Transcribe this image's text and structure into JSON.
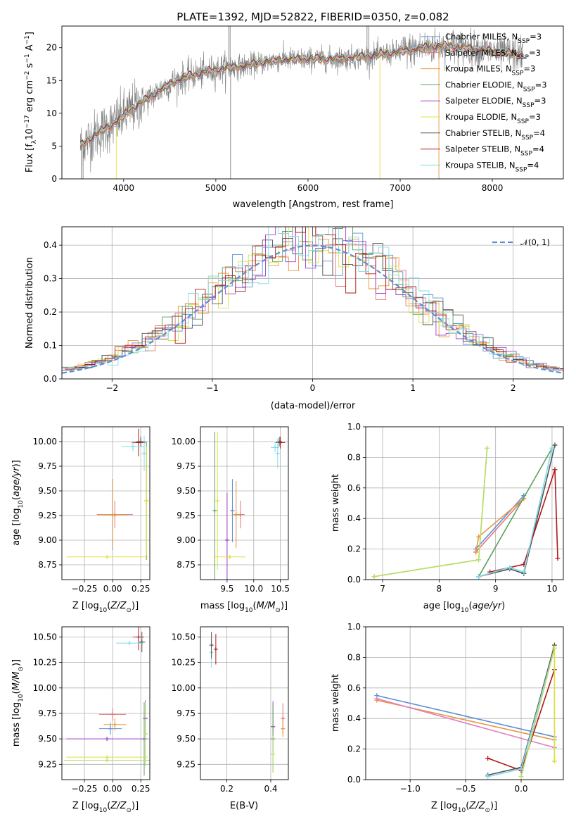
{
  "figure_title": "PLATE=1392, MJD=52822, FIBERID=0350, z=0.082",
  "colors": {
    "Chabrier MILES": "#5b8fd6",
    "Salpeter MILES": "#e37777",
    "Kroupa MILES": "#e8953a",
    "Chabrier ELODIE": "#5aa05a",
    "Salpeter ELODIE": "#a040c8",
    "Kroupa ELODIE": "#e0e040",
    "Chabrier STELIB": "#555555",
    "Salpeter STELIB": "#b01818",
    "Kroupa STELIB": "#7fdcec",
    "data": "#808080",
    "normal": "#5b8fd6",
    "pink": "#e080c0",
    "lime": "#b8dc70"
  },
  "legend": {
    "models": [
      {
        "name": "Chabrier MILES",
        "n": "3"
      },
      {
        "name": "Salpeter MILES",
        "n": "3"
      },
      {
        "name": "Kroupa MILES",
        "n": "3"
      },
      {
        "name": "Chabrier ELODIE",
        "n": "3"
      },
      {
        "name": "Salpeter ELODIE",
        "n": "3"
      },
      {
        "name": "Kroupa ELODIE",
        "n": "3"
      },
      {
        "name": "Chabrier STELIB",
        "n": "4"
      },
      {
        "name": "Salpeter STELIB",
        "n": "4"
      },
      {
        "name": "Kroupa STELIB",
        "n": "4"
      }
    ],
    "n_prefix": "N",
    "n_sub": "SSP",
    "normal_label": "𝒩(0, 1)"
  },
  "chart_data": [
    {
      "id": "spectrum",
      "type": "line",
      "title": "PLATE=1392, MJD=52822, FIBERID=0350, z=0.082",
      "xlabel": "wavelength [Angstrom, rest frame]",
      "ylabel_main": "Flux [f",
      "ylabel_sub": "λ",
      "ylabel_rest": "10",
      "ylabel_exp1": "−17",
      "ylabel_mid": " erg cm",
      "ylabel_exp2": "−2",
      "ylabel_mid2": " s",
      "ylabel_exp3": "−1",
      "ylabel_mid3": " A",
      "ylabel_exp4": "−1",
      "ylabel_end": "]",
      "xlim": [
        3330,
        8770
      ],
      "ylim": [
        0,
        23.3
      ],
      "xticks": [
        4000,
        5000,
        6000,
        7000,
        8000
      ],
      "yticks": [
        0,
        5,
        10,
        15,
        20
      ],
      "grid": false,
      "legend_position": "right",
      "spectrum_shape": {
        "x": [
          3530,
          3700,
          3900,
          4100,
          4300,
          4500,
          4700,
          4900,
          5100,
          5300,
          5500,
          5700,
          5900,
          6100,
          6300,
          6500,
          6700,
          6900,
          7100,
          7300,
          7500,
          7700,
          7900,
          8100,
          8300
        ],
        "y": [
          5.0,
          6.8,
          8.5,
          10.8,
          12.6,
          14.5,
          15.7,
          16.3,
          16.9,
          17.2,
          17.7,
          18.2,
          18.2,
          18.3,
          18.3,
          18.5,
          18.8,
          19.2,
          19.6,
          20.1,
          20.3,
          20.0,
          19.6,
          19.2,
          19.0
        ]
      }
    },
    {
      "id": "residuals",
      "type": "histogram",
      "xlabel": "(data-model)/error",
      "ylabel": "Normed distribution",
      "xlim": [
        -2.5,
        2.5
      ],
      "ylim": [
        0,
        0.455
      ],
      "xticks": [
        -2,
        -1,
        0,
        1,
        2
      ],
      "yticks": [
        0.0,
        0.1,
        0.2,
        0.3,
        0.4
      ],
      "grid": true,
      "bin_width": 0.1,
      "legend_position": "top-right",
      "normal_curve": {
        "mean": 0,
        "sigma": 1,
        "style": "dashed"
      }
    },
    {
      "id": "age_vs_Z",
      "type": "errorbar",
      "xlabel": "Z [log",
      "xlabel_sub": "10",
      "xlabel_rest": "(Z/Z",
      "xlabel_sun": "⊙",
      "xlabel_end": ")]",
      "ylabel": "age  [log",
      "ylabel_sub": "10",
      "ylabel_rest": "(age/yr)]",
      "xlim": [
        -0.45,
        0.33
      ],
      "ylim": [
        8.6,
        10.15
      ],
      "xticks": [
        -0.25,
        0.0,
        0.25
      ],
      "xticklabels": [
        "−0.25",
        "0.00",
        "0.25"
      ],
      "yticks": [
        8.75,
        9.0,
        9.25,
        9.5,
        9.75,
        10.0
      ],
      "grid": true,
      "points": [
        {
          "model": "Chabrier MILES",
          "x": 0.0,
          "y": 9.26,
          "xerr": 0.13,
          "yerr": 0.36
        },
        {
          "model": "Salpeter MILES",
          "x": 0.02,
          "y": 9.26,
          "xerr": 0.16,
          "yerr": 0.14
        },
        {
          "model": "Kroupa MILES",
          "x": 0.0,
          "y": 9.26,
          "xerr": 0.12,
          "yerr": 0.34
        },
        {
          "model": "Chabrier ELODIE",
          "x": 0.3,
          "y": 9.4,
          "xerr": 0.02,
          "yerr": 0.6
        },
        {
          "model": "Kroupa ELODIE",
          "x": -0.05,
          "y": 8.83,
          "xerr": 0.36,
          "yerr": 0.02
        },
        {
          "model": "Kroupa ELODIE",
          "x": 0.3,
          "y": 9.4,
          "xerr": 0.02,
          "yerr": 0.55
        },
        {
          "model": "Salpeter STELIB",
          "x": 0.23,
          "y": 9.99,
          "xerr": 0.06,
          "yerr": 0.14
        },
        {
          "model": "Chabrier STELIB",
          "x": 0.25,
          "y": 10.0,
          "xerr": 0.04,
          "yerr": 0.05
        },
        {
          "model": "Kroupa STELIB",
          "x": 0.18,
          "y": 9.95,
          "xerr": 0.1,
          "yerr": 0.05
        },
        {
          "model": "Kroupa STELIB",
          "x": 0.28,
          "y": 9.88,
          "xerr": 0.02,
          "yerr": 0.18
        }
      ]
    },
    {
      "id": "age_vs_mass",
      "type": "errorbar",
      "xlabel": "mass [log",
      "xlabel_sub": "10",
      "xlabel_rest": "(M/M",
      "xlabel_sun": "⊙",
      "xlabel_end": ")]",
      "xlim": [
        9.0,
        10.65
      ],
      "ylim": [
        8.6,
        10.15
      ],
      "xticks": [
        9.5,
        10.0,
        10.5
      ],
      "xticklabels": [
        "9.5",
        "10.0",
        "10.5"
      ],
      "yticks": [
        8.75,
        9.0,
        9.25,
        9.5,
        9.75,
        10.0
      ],
      "grid": true,
      "points": [
        {
          "model": "Chabrier MILES",
          "x": 9.6,
          "y": 9.3,
          "xerr": 0.03,
          "yerr": 0.32
        },
        {
          "model": "Salpeter MILES",
          "x": 9.75,
          "y": 9.26,
          "xerr": 0.08,
          "yerr": 0.14
        },
        {
          "model": "Kroupa MILES",
          "x": 9.67,
          "y": 9.26,
          "xerr": 0.08,
          "yerr": 0.34
        },
        {
          "model": "Chabrier ELODIE",
          "x": 9.27,
          "y": 9.3,
          "xerr": 0.02,
          "yerr": 0.8
        },
        {
          "model": "Salpeter ELODIE",
          "x": 9.5,
          "y": 9.0,
          "xerr": 0.02,
          "yerr": 0.48
        },
        {
          "model": "Kroupa ELODIE",
          "x": 9.55,
          "y": 8.83,
          "xerr": 0.3,
          "yerr": 0.02
        },
        {
          "model": "Kroupa ELODIE",
          "x": 9.32,
          "y": 9.4,
          "xerr": 0.02,
          "yerr": 0.7
        },
        {
          "model": "Salpeter STELIB",
          "x": 10.5,
          "y": 9.99,
          "xerr": 0.09,
          "yerr": 0.06
        },
        {
          "model": "Chabrier STELIB",
          "x": 10.48,
          "y": 10.0,
          "xerr": 0.05,
          "yerr": 0.05
        },
        {
          "model": "Kroupa STELIB",
          "x": 10.4,
          "y": 9.94,
          "xerr": 0.08,
          "yerr": 0.05
        },
        {
          "model": "Kroupa STELIB",
          "x": 10.45,
          "y": 9.88,
          "xerr": 0.02,
          "yerr": 0.15
        }
      ]
    },
    {
      "id": "weight_vs_age",
      "type": "line",
      "xlabel": "age  [log",
      "xlabel_sub": "10",
      "xlabel_rest": "(age/yr)]",
      "ylabel": "mass weight",
      "xlim": [
        6.7,
        10.2
      ],
      "ylim": [
        0,
        1.0
      ],
      "xticks": [
        7,
        8,
        9,
        10
      ],
      "yticks": [
        0.0,
        0.2,
        0.4,
        0.6,
        0.8,
        1.0
      ],
      "grid": true,
      "series": [
        {
          "model": "Chabrier MILES",
          "x": [
            8.65,
            9.5
          ],
          "y": [
            0.2,
            0.55
          ]
        },
        {
          "model": "Salpeter MILES",
          "x": [
            8.65,
            9.5
          ],
          "y": [
            0.18,
            0.53
          ]
        },
        {
          "model": "Kroupa MILES",
          "x": [
            8.65,
            8.7,
            9.5
          ],
          "y": [
            0.18,
            0.28,
            0.53
          ]
        },
        {
          "model": "Chabrier ELODIE",
          "x": [
            8.7,
            10.0
          ],
          "y": [
            0.02,
            0.86
          ]
        },
        {
          "model": "Kroupa ELODIE",
          "x": [
            6.85,
            8.7,
            8.85
          ],
          "y": [
            0.02,
            0.13,
            0.86
          ]
        },
        {
          "model": "Lime ELODIE",
          "x": [
            6.85,
            8.7,
            8.85
          ],
          "y": [
            0.02,
            0.13,
            0.86
          ]
        },
        {
          "model": "Chabrier STELIB",
          "x": [
            8.7,
            9.25,
            9.5,
            10.05
          ],
          "y": [
            0.02,
            0.07,
            0.04,
            0.88
          ]
        },
        {
          "model": "Salpeter STELIB",
          "x": [
            8.9,
            9.5,
            10.05,
            10.1
          ],
          "y": [
            0.05,
            0.1,
            0.72,
            0.14
          ]
        },
        {
          "model": "Kroupa STELIB",
          "x": [
            8.7,
            9.25,
            9.5,
            10.0
          ],
          "y": [
            0.02,
            0.08,
            0.05,
            0.86
          ]
        }
      ]
    },
    {
      "id": "mass_vs_Z",
      "type": "errorbar",
      "xlabel": "Z [log",
      "xlabel_sub": "10",
      "xlabel_rest": "(Z/Z",
      "xlabel_sun": "⊙",
      "xlabel_end": ")]",
      "ylabel": "mass [log",
      "ylabel_sub": "10",
      "ylabel_rest": "(M/M",
      "ylabel_sun": "⊙",
      "ylabel_end": ")]",
      "xlim": [
        -0.45,
        0.33
      ],
      "ylim": [
        9.1,
        10.6
      ],
      "xticks": [
        -0.25,
        0.0,
        0.25
      ],
      "xticklabels": [
        "−0.25",
        "0.00",
        "0.25"
      ],
      "yticks": [
        9.25,
        9.5,
        9.75,
        10.0,
        10.25,
        10.5
      ],
      "grid": true,
      "points": [
        {
          "model": "Chabrier MILES",
          "x": -0.02,
          "y": 9.6,
          "xerr": 0.1,
          "yerr": 0.06
        },
        {
          "model": "Salpeter MILES",
          "x": 0.0,
          "y": 9.74,
          "xerr": 0.12,
          "yerr": 0.06
        },
        {
          "model": "Kroupa MILES",
          "x": 0.02,
          "y": 9.64,
          "xerr": 0.1,
          "yerr": 0.06
        },
        {
          "model": "Chabrier ELODIE",
          "x": 0.28,
          "y": 9.5,
          "xerr": 0.02,
          "yerr": 0.36
        },
        {
          "model": "Salpeter ELODIE",
          "x": -0.05,
          "y": 9.5,
          "xerr": 0.36,
          "yerr": 0.02
        },
        {
          "model": "Salpeter ELODIE",
          "x": 0.29,
          "y": 9.7,
          "xerr": 0.02,
          "yerr": 0.18
        },
        {
          "model": "Kroupa ELODIE",
          "x": -0.05,
          "y": 9.32,
          "xerr": 0.36,
          "yerr": 0.02
        },
        {
          "model": "Lime ELODIE",
          "x": -0.05,
          "y": 9.29,
          "xerr": 0.38,
          "yerr": 0.02
        },
        {
          "model": "Lime ELODIE",
          "x": 0.29,
          "y": 9.55,
          "xerr": 0.02,
          "yerr": 0.32
        },
        {
          "model": "Salpeter STELIB",
          "x": 0.23,
          "y": 10.5,
          "xerr": 0.05,
          "yerr": 0.13
        },
        {
          "model": "Chabrier STELIB",
          "x": 0.26,
          "y": 10.45,
          "xerr": 0.03,
          "yerr": 0.1
        },
        {
          "model": "Kroupa STELIB",
          "x": 0.15,
          "y": 10.44,
          "xerr": 0.12,
          "yerr": 0.02
        }
      ]
    },
    {
      "id": "mass_vs_ebv",
      "type": "errorbar",
      "xlabel": "E(B-V)",
      "xlim": [
        0.08,
        0.48
      ],
      "ylim": [
        9.1,
        10.6
      ],
      "xticks": [
        0.2,
        0.4
      ],
      "xticklabels": [
        "0.2",
        "0.4"
      ],
      "yticks": [
        9.25,
        9.5,
        9.75,
        10.0,
        10.25,
        10.5
      ],
      "grid": true,
      "points": [
        {
          "model": "Kroupa STELIB",
          "x": 0.13,
          "y": 10.35,
          "xerr": 0.0,
          "yerr": 0.15
        },
        {
          "model": "Chabrier STELIB",
          "x": 0.13,
          "y": 10.42,
          "xerr": 0.0,
          "yerr": 0.13
        },
        {
          "model": "Salpeter STELIB",
          "x": 0.15,
          "y": 10.38,
          "xerr": 0.0,
          "yerr": 0.15
        },
        {
          "model": "Salpeter ELODIE",
          "x": 0.41,
          "y": 9.62,
          "xerr": 0.0,
          "yerr": 0.25
        },
        {
          "model": "Chabrier ELODIE",
          "x": 0.41,
          "y": 9.5,
          "xerr": 0.0,
          "yerr": 0.33
        },
        {
          "model": "Lime ELODIE",
          "x": 0.41,
          "y": 9.35,
          "xerr": 0.0,
          "yerr": 0.18
        },
        {
          "model": "Salpeter MILES",
          "x": 0.455,
          "y": 9.7,
          "xerr": 0.0,
          "yerr": 0.15
        },
        {
          "model": "Kroupa MILES",
          "x": 0.455,
          "y": 9.6,
          "xerr": 0.0,
          "yerr": 0.08
        }
      ]
    },
    {
      "id": "weight_vs_Z",
      "type": "line",
      "xlabel": "Z [log",
      "xlabel_sub": "10",
      "xlabel_rest": "(Z/Z",
      "xlabel_sun": "⊙",
      "xlabel_end": ")]",
      "ylabel": "mass weight",
      "xlim": [
        -1.4,
        0.38
      ],
      "ylim": [
        0,
        1.0
      ],
      "xticks": [
        -1.0,
        -0.5,
        0.0
      ],
      "xticklabels": [
        "−1.0",
        "−0.5",
        "0.0"
      ],
      "yticks": [
        0.0,
        0.2,
        0.4,
        0.6,
        0.8,
        1.0
      ],
      "grid": true,
      "series": [
        {
          "model": "Chabrier MILES",
          "x": [
            -1.3,
            0.3
          ],
          "y": [
            0.55,
            0.28
          ]
        },
        {
          "model": "Kroupa MILES",
          "x": [
            -1.3,
            0.3
          ],
          "y": [
            0.52,
            0.26
          ]
        },
        {
          "model": "Pink MILES",
          "x": [
            -1.3,
            0.3
          ],
          "y": [
            0.53,
            0.21
          ]
        },
        {
          "model": "Chabrier STELIB",
          "x": [
            -0.3,
            0.0,
            0.3
          ],
          "y": [
            0.03,
            0.08,
            0.88
          ]
        },
        {
          "model": "Salpeter STELIB",
          "x": [
            -0.3,
            0.0,
            0.3
          ],
          "y": [
            0.14,
            0.06,
            0.72
          ]
        },
        {
          "model": "Kroupa STELIB",
          "x": [
            -0.3,
            0.0,
            0.3
          ],
          "y": [
            0.02,
            0.07,
            0.86
          ]
        },
        {
          "model": "Lime ELODIE",
          "x": [
            0.0,
            0.3,
            0.3
          ],
          "y": [
            0.02,
            0.86,
            0.12
          ]
        },
        {
          "model": "Kroupa ELODIE",
          "x": [
            0.3,
            0.3
          ],
          "y": [
            0.12,
            0.86
          ]
        }
      ]
    }
  ]
}
